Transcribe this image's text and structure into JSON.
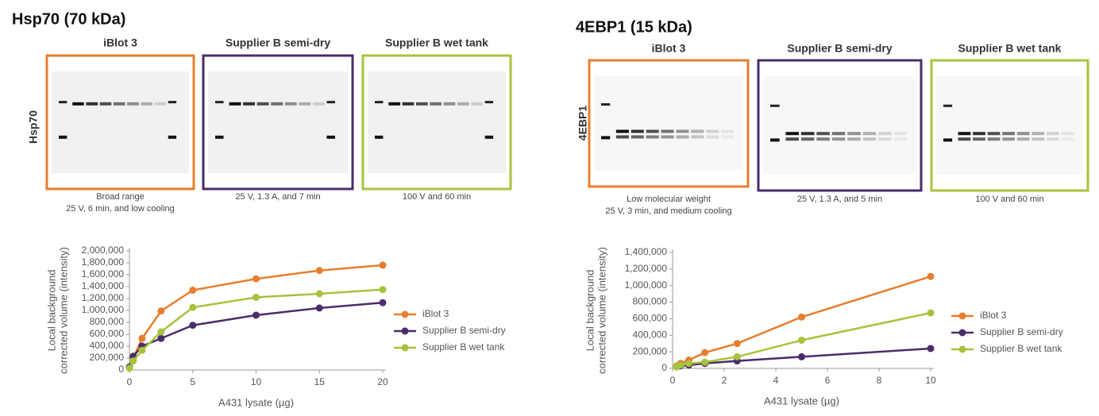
{
  "chart_data": [
    {
      "type": "line",
      "title": "Hsp70 (70 kDa)",
      "blot_axis_label": "Hsp70",
      "blots": [
        {
          "label": "iBlot 3",
          "caption": [
            "Broad range",
            "25 V, 6 min, and low cooling"
          ],
          "color": "#e87d2e"
        },
        {
          "label": "Supplier B semi-dry",
          "caption": [
            "25 V, 1.3 A, and 7 min"
          ],
          "color": "#4b2c6b"
        },
        {
          "label": "Supplier B wet tank",
          "caption": [
            "100 V and  60 min"
          ],
          "color": "#a6c33c"
        }
      ],
      "x_label": "A431 lysate (µg)",
      "y_label": [
        "Local background",
        "corrected volume (intensity)"
      ],
      "x": [
        0,
        0.3,
        1,
        2.5,
        5,
        10,
        15,
        20
      ],
      "series": [
        {
          "name": "iBlot 3",
          "color": "#e87d2e",
          "values": [
            50000,
            200000,
            530000,
            990000,
            1340000,
            1530000,
            1670000,
            1760000
          ]
        },
        {
          "name": "Supplier B semi-dry",
          "color": "#4b2c6b",
          "values": [
            50000,
            230000,
            400000,
            530000,
            750000,
            920000,
            1040000,
            1130000
          ]
        },
        {
          "name": "Supplier B wet tank",
          "color": "#a6c33c",
          "values": [
            30000,
            150000,
            330000,
            640000,
            1050000,
            1220000,
            1280000,
            1350000
          ]
        }
      ],
      "xlim": [
        0,
        20
      ],
      "xticks": [
        0,
        5,
        10,
        15,
        20
      ],
      "ylim": [
        0,
        2000000
      ],
      "yticks": [
        0,
        {
          "value": 200000,
          "label": "200,000"
        },
        {
          "value": 400000,
          "label": "400,000"
        },
        {
          "value": 600000,
          "label": "600,000"
        },
        {
          "value": 800000,
          "label": "800,000"
        },
        {
          "value": 1000000,
          "label": "1,000,000"
        },
        {
          "value": 1200000,
          "label": "1,200,000"
        },
        {
          "value": 1400000,
          "label": "1,400,000"
        },
        {
          "value": 1600000,
          "label": "1,600,000"
        },
        {
          "value": 1800000,
          "label": "1,800,000"
        },
        {
          "value": 2000000,
          "label": "2,000,000"
        }
      ],
      "grid": false,
      "legend": "right"
    },
    {
      "type": "line",
      "title": "4EBP1 (15 kDa)",
      "blot_axis_label": "4EBP1",
      "blots": [
        {
          "label": "iBlot 3",
          "caption": [
            "Low molecular weight",
            "25 V, 3 min, and medium cooling"
          ],
          "color": "#e87d2e"
        },
        {
          "label": "Supplier B semi-dry",
          "caption": [
            "25 V, 1.3 A, and 5 min"
          ],
          "color": "#4b2c6b"
        },
        {
          "label": "Supplier B wet tank",
          "caption": [
            "100 V and 60 min"
          ],
          "color": "#a6c33c"
        }
      ],
      "x_label": "A431 lysate (µg)",
      "y_label": [
        "Local background",
        "corrected volume (intensity)"
      ],
      "x": [
        0.16,
        0.31,
        0.63,
        1.25,
        2.5,
        5,
        10
      ],
      "series": [
        {
          "name": "iBlot 3",
          "color": "#e87d2e",
          "values": [
            30000,
            60000,
            100000,
            190000,
            300000,
            620000,
            1110000
          ]
        },
        {
          "name": "Supplier B semi-dry",
          "color": "#4b2c6b",
          "values": [
            20000,
            30000,
            40000,
            60000,
            90000,
            140000,
            240000
          ]
        },
        {
          "name": "Supplier B wet tank",
          "color": "#a6c33c",
          "values": [
            20000,
            40000,
            60000,
            75000,
            140000,
            340000,
            670000
          ]
        }
      ],
      "xlim": [
        0,
        10
      ],
      "xticks": [
        0,
        2,
        4,
        6,
        8,
        10
      ],
      "ylim": [
        0,
        1400000
      ],
      "yticks": [
        0,
        {
          "value": 200000,
          "label": "200,000"
        },
        {
          "value": 400000,
          "label": "400,000"
        },
        {
          "value": 600000,
          "label": "600,000"
        },
        {
          "value": 800000,
          "label": "800,000"
        },
        {
          "value": 1000000,
          "label": "1,000,000"
        },
        {
          "value": 1200000,
          "label": "1,200,000"
        },
        {
          "value": 1400000,
          "label": "1,400,000"
        }
      ],
      "grid": false,
      "legend": "right"
    }
  ]
}
